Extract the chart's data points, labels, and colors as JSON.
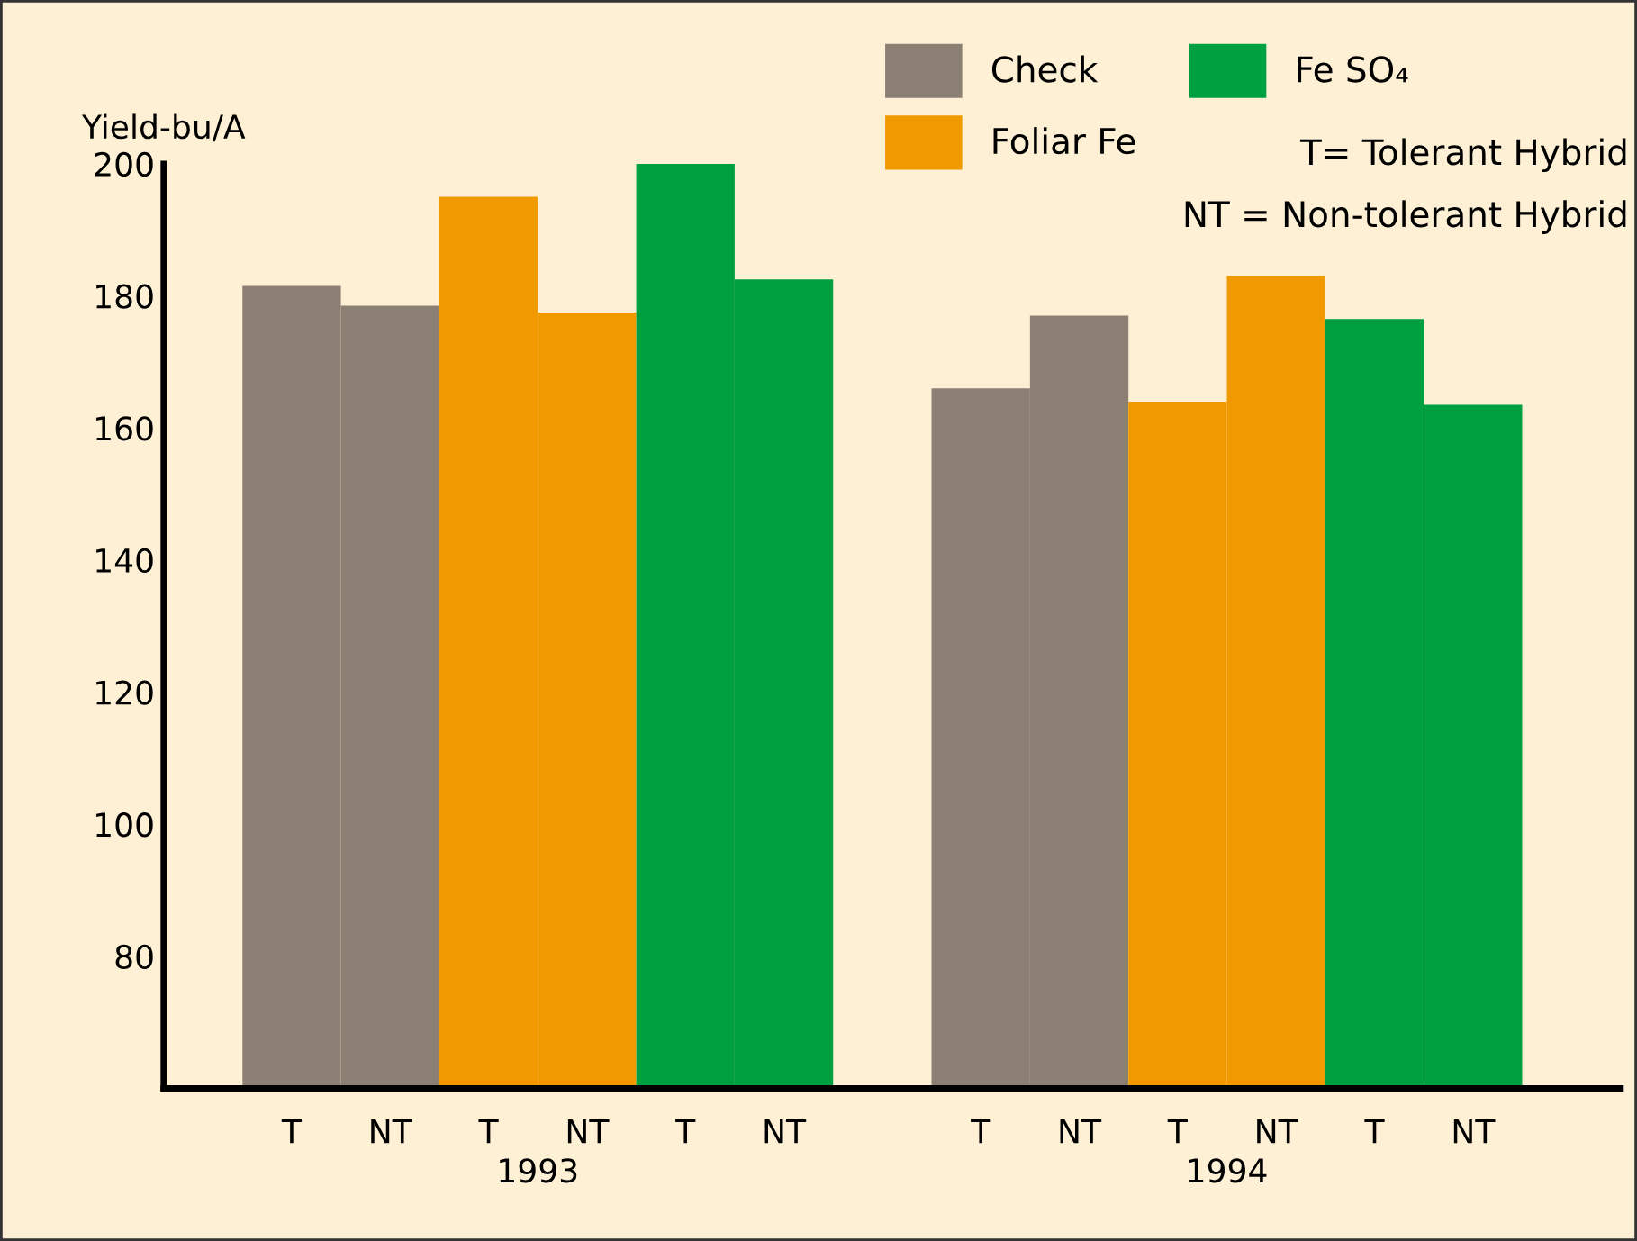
{
  "chart_data": {
    "type": "bar",
    "ylabel": "Yield-bu/A",
    "categories": [
      "T",
      "NT",
      "T",
      "NT",
      "T",
      "NT",
      null,
      "T",
      "NT",
      "T",
      "NT",
      "T",
      "NT"
    ],
    "series": [
      {
        "name": "Check",
        "color": "#8c7f74",
        "values": [
          181.5,
          178.5,
          null,
          null,
          null,
          null,
          null,
          166,
          177,
          null,
          null,
          null,
          null
        ]
      },
      {
        "name": "Foliar Fe",
        "color": "#f09a00",
        "values": [
          null,
          null,
          195,
          177.5,
          null,
          null,
          null,
          null,
          null,
          164,
          183,
          null,
          null
        ]
      },
      {
        "name": "Fe SO₄",
        "color": "#00a040",
        "values": [
          null,
          null,
          null,
          null,
          200,
          182.5,
          null,
          null,
          null,
          null,
          null,
          176.5,
          163.5
        ]
      }
    ],
    "ylim": [
      60,
      200
    ],
    "yticks": [
      80,
      100,
      120,
      140,
      160,
      180,
      200
    ],
    "grid": false,
    "legend": "top right",
    "annotations": [
      "1993",
      "1994",
      "T= Tolerant Hybrid",
      "NT = Non-tolerant Hybrid"
    ]
  }
}
